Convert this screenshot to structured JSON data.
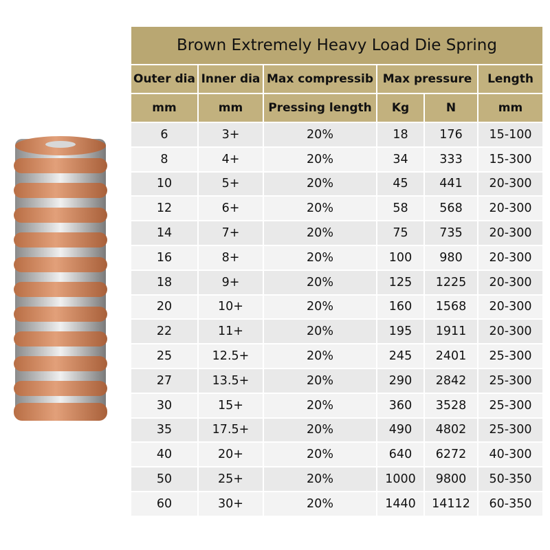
{
  "header": {
    "title": "Brown Extremely Heavy Load Die Spring"
  },
  "table": {
    "head1": [
      "Outer dia",
      "Inner dia",
      "Max compressib",
      "Max pressure",
      "Length"
    ],
    "head2": [
      "mm",
      "mm",
      "Pressing length",
      "Kg",
      "N",
      "mm"
    ],
    "rows": [
      [
        "6",
        "3+",
        "20%",
        "18",
        "176",
        "15-100"
      ],
      [
        "8",
        "4+",
        "20%",
        "34",
        "333",
        "15-300"
      ],
      [
        "10",
        "5+",
        "20%",
        "45",
        "441",
        "20-300"
      ],
      [
        "12",
        "6+",
        "20%",
        "58",
        "568",
        "20-300"
      ],
      [
        "14",
        "7+",
        "20%",
        "75",
        "735",
        "20-300"
      ],
      [
        "16",
        "8+",
        "20%",
        "100",
        "980",
        "20-300"
      ],
      [
        "18",
        "9+",
        "20%",
        "125",
        "1225",
        "20-300"
      ],
      [
        "20",
        "10+",
        "20%",
        "160",
        "1568",
        "20-300"
      ],
      [
        "22",
        "11+",
        "20%",
        "195",
        "1911",
        "20-300"
      ],
      [
        "25",
        "12.5+",
        "20%",
        "245",
        "2401",
        "25-300"
      ],
      [
        "27",
        "13.5+",
        "20%",
        "290",
        "2842",
        "25-300"
      ],
      [
        "30",
        "15+",
        "20%",
        "360",
        "3528",
        "25-300"
      ],
      [
        "35",
        "17.5+",
        "20%",
        "490",
        "4802",
        "25-300"
      ],
      [
        "40",
        "20+",
        "20%",
        "640",
        "6272",
        "40-300"
      ],
      [
        "50",
        "25+",
        "20%",
        "1000",
        "9800",
        "50-350"
      ],
      [
        "60",
        "30+",
        "20%",
        "1440",
        "14112",
        "60-350"
      ]
    ]
  }
}
